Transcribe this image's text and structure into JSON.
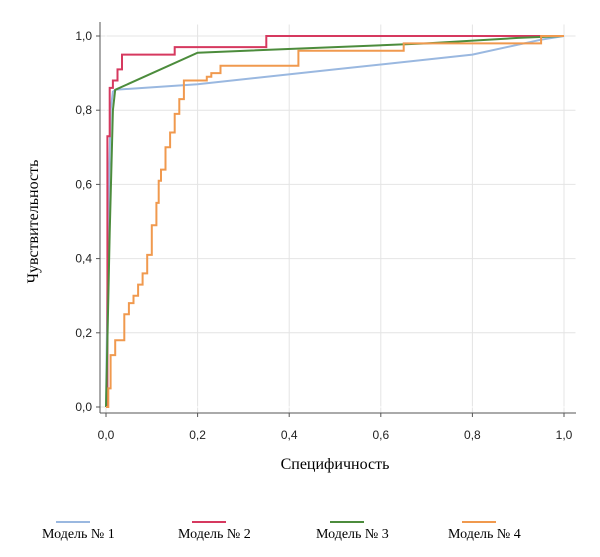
{
  "chart_data": {
    "type": "line",
    "title": "",
    "xlabel": "Специфичность",
    "ylabel": "Чувствительность",
    "xlim": [
      0,
      1
    ],
    "ylim": [
      0,
      1
    ],
    "xticks": [
      "0,0",
      "0,2",
      "0,4",
      "0,6",
      "0,8",
      "1,0"
    ],
    "yticks": [
      "0,0",
      "0,2",
      "0,4",
      "0,6",
      "0,8",
      "1,0"
    ],
    "grid": true,
    "legend_position": "bottom",
    "series": [
      {
        "name": "Модель № 1",
        "color": "#9ab8e0",
        "x": [
          0.0,
          0.005,
          0.01,
          0.015,
          0.02,
          0.2,
          0.5,
          0.8,
          0.95,
          1.0
        ],
        "y": [
          0.0,
          0.5,
          0.8,
          0.85,
          0.855,
          0.87,
          0.91,
          0.95,
          0.99,
          1.0
        ]
      },
      {
        "name": "Модель № 2",
        "color": "#d6395f",
        "x": [
          0.0,
          0.003,
          0.003,
          0.008,
          0.008,
          0.015,
          0.015,
          0.025,
          0.025,
          0.035,
          0.035,
          0.15,
          0.15,
          0.35,
          0.35,
          1.0
        ],
        "y": [
          0.0,
          0.0,
          0.73,
          0.73,
          0.86,
          0.86,
          0.88,
          0.88,
          0.91,
          0.91,
          0.95,
          0.95,
          0.97,
          0.97,
          1.0,
          1.0
        ],
        "step": true
      },
      {
        "name": "Модель № 3",
        "color": "#4c8c3c",
        "x": [
          0.0,
          0.008,
          0.015,
          0.02,
          0.2,
          0.5,
          0.7,
          0.9,
          1.0
        ],
        "y": [
          0.0,
          0.47,
          0.8,
          0.855,
          0.955,
          0.97,
          0.98,
          0.995,
          1.0
        ],
        "step": false
      },
      {
        "name": "Модель № 4",
        "color": "#f0994e",
        "x": [
          0.0,
          0.005,
          0.005,
          0.01,
          0.01,
          0.02,
          0.02,
          0.04,
          0.04,
          0.05,
          0.05,
          0.06,
          0.06,
          0.07,
          0.07,
          0.08,
          0.08,
          0.09,
          0.09,
          0.1,
          0.1,
          0.11,
          0.11,
          0.115,
          0.115,
          0.12,
          0.12,
          0.13,
          0.13,
          0.14,
          0.14,
          0.15,
          0.15,
          0.16,
          0.16,
          0.17,
          0.17,
          0.22,
          0.22,
          0.23,
          0.23,
          0.25,
          0.25,
          0.42,
          0.42,
          0.65,
          0.65,
          0.95,
          0.95,
          1.0
        ],
        "y": [
          0.0,
          0.0,
          0.05,
          0.05,
          0.14,
          0.14,
          0.18,
          0.18,
          0.25,
          0.25,
          0.28,
          0.28,
          0.3,
          0.3,
          0.33,
          0.33,
          0.36,
          0.36,
          0.41,
          0.41,
          0.49,
          0.49,
          0.55,
          0.55,
          0.61,
          0.61,
          0.64,
          0.64,
          0.7,
          0.7,
          0.74,
          0.74,
          0.79,
          0.79,
          0.83,
          0.83,
          0.88,
          0.88,
          0.89,
          0.89,
          0.9,
          0.9,
          0.92,
          0.92,
          0.96,
          0.96,
          0.98,
          0.98,
          1.0,
          1.0
        ],
        "step": false
      }
    ]
  }
}
